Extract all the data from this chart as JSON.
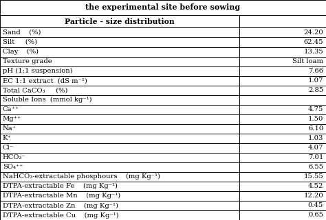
{
  "title": "the experimental site before sowing",
  "header_bold": "Particle - size distribution",
  "rows": [
    [
      "Sand    (%)",
      "24.20"
    ],
    [
      "Silt     (%)",
      "62.45"
    ],
    [
      "Clay    (%)",
      "13.35"
    ],
    [
      "Texture grade",
      "Silt loam"
    ],
    [
      "pH (1:1 suspension)",
      "7.66"
    ],
    [
      "EC 1:1 extract  (dS m⁻¹)",
      "1.07"
    ],
    [
      "Total CaCO₃     (%)",
      "2.85"
    ],
    [
      "Soluble Ions  (mmol kg⁻¹)",
      ""
    ],
    [
      "Ca⁺⁺",
      "4.75"
    ],
    [
      "Mg⁺⁺",
      "1.50"
    ],
    [
      "Na⁺",
      "6.10"
    ],
    [
      "K⁺",
      "1.03"
    ],
    [
      "Cl⁻",
      "4.07"
    ],
    [
      "HCO₃⁻",
      "7.01"
    ],
    [
      "SO₄⁺⁺",
      "6.55"
    ],
    [
      "NaHCO₃-extractable phosphours    (mg Kg⁻¹)",
      "15.55"
    ],
    [
      "DTPA-extractable Fe    (mg Kg⁻¹)",
      "4.52"
    ],
    [
      "DTPA-extractable Mn    (mg Kg⁻¹)",
      "12.20"
    ],
    [
      "DTPA-extractable Zn    (mg Kg⁻¹)",
      "0.45"
    ],
    [
      "DTPA-extractable Cu    (mg Kg⁻¹)",
      "0.65"
    ]
  ],
  "col_split": 0.735,
  "line_color": "#000000",
  "font_size": 7.2,
  "title_font_size": 8.0,
  "header_font_size": 7.8
}
